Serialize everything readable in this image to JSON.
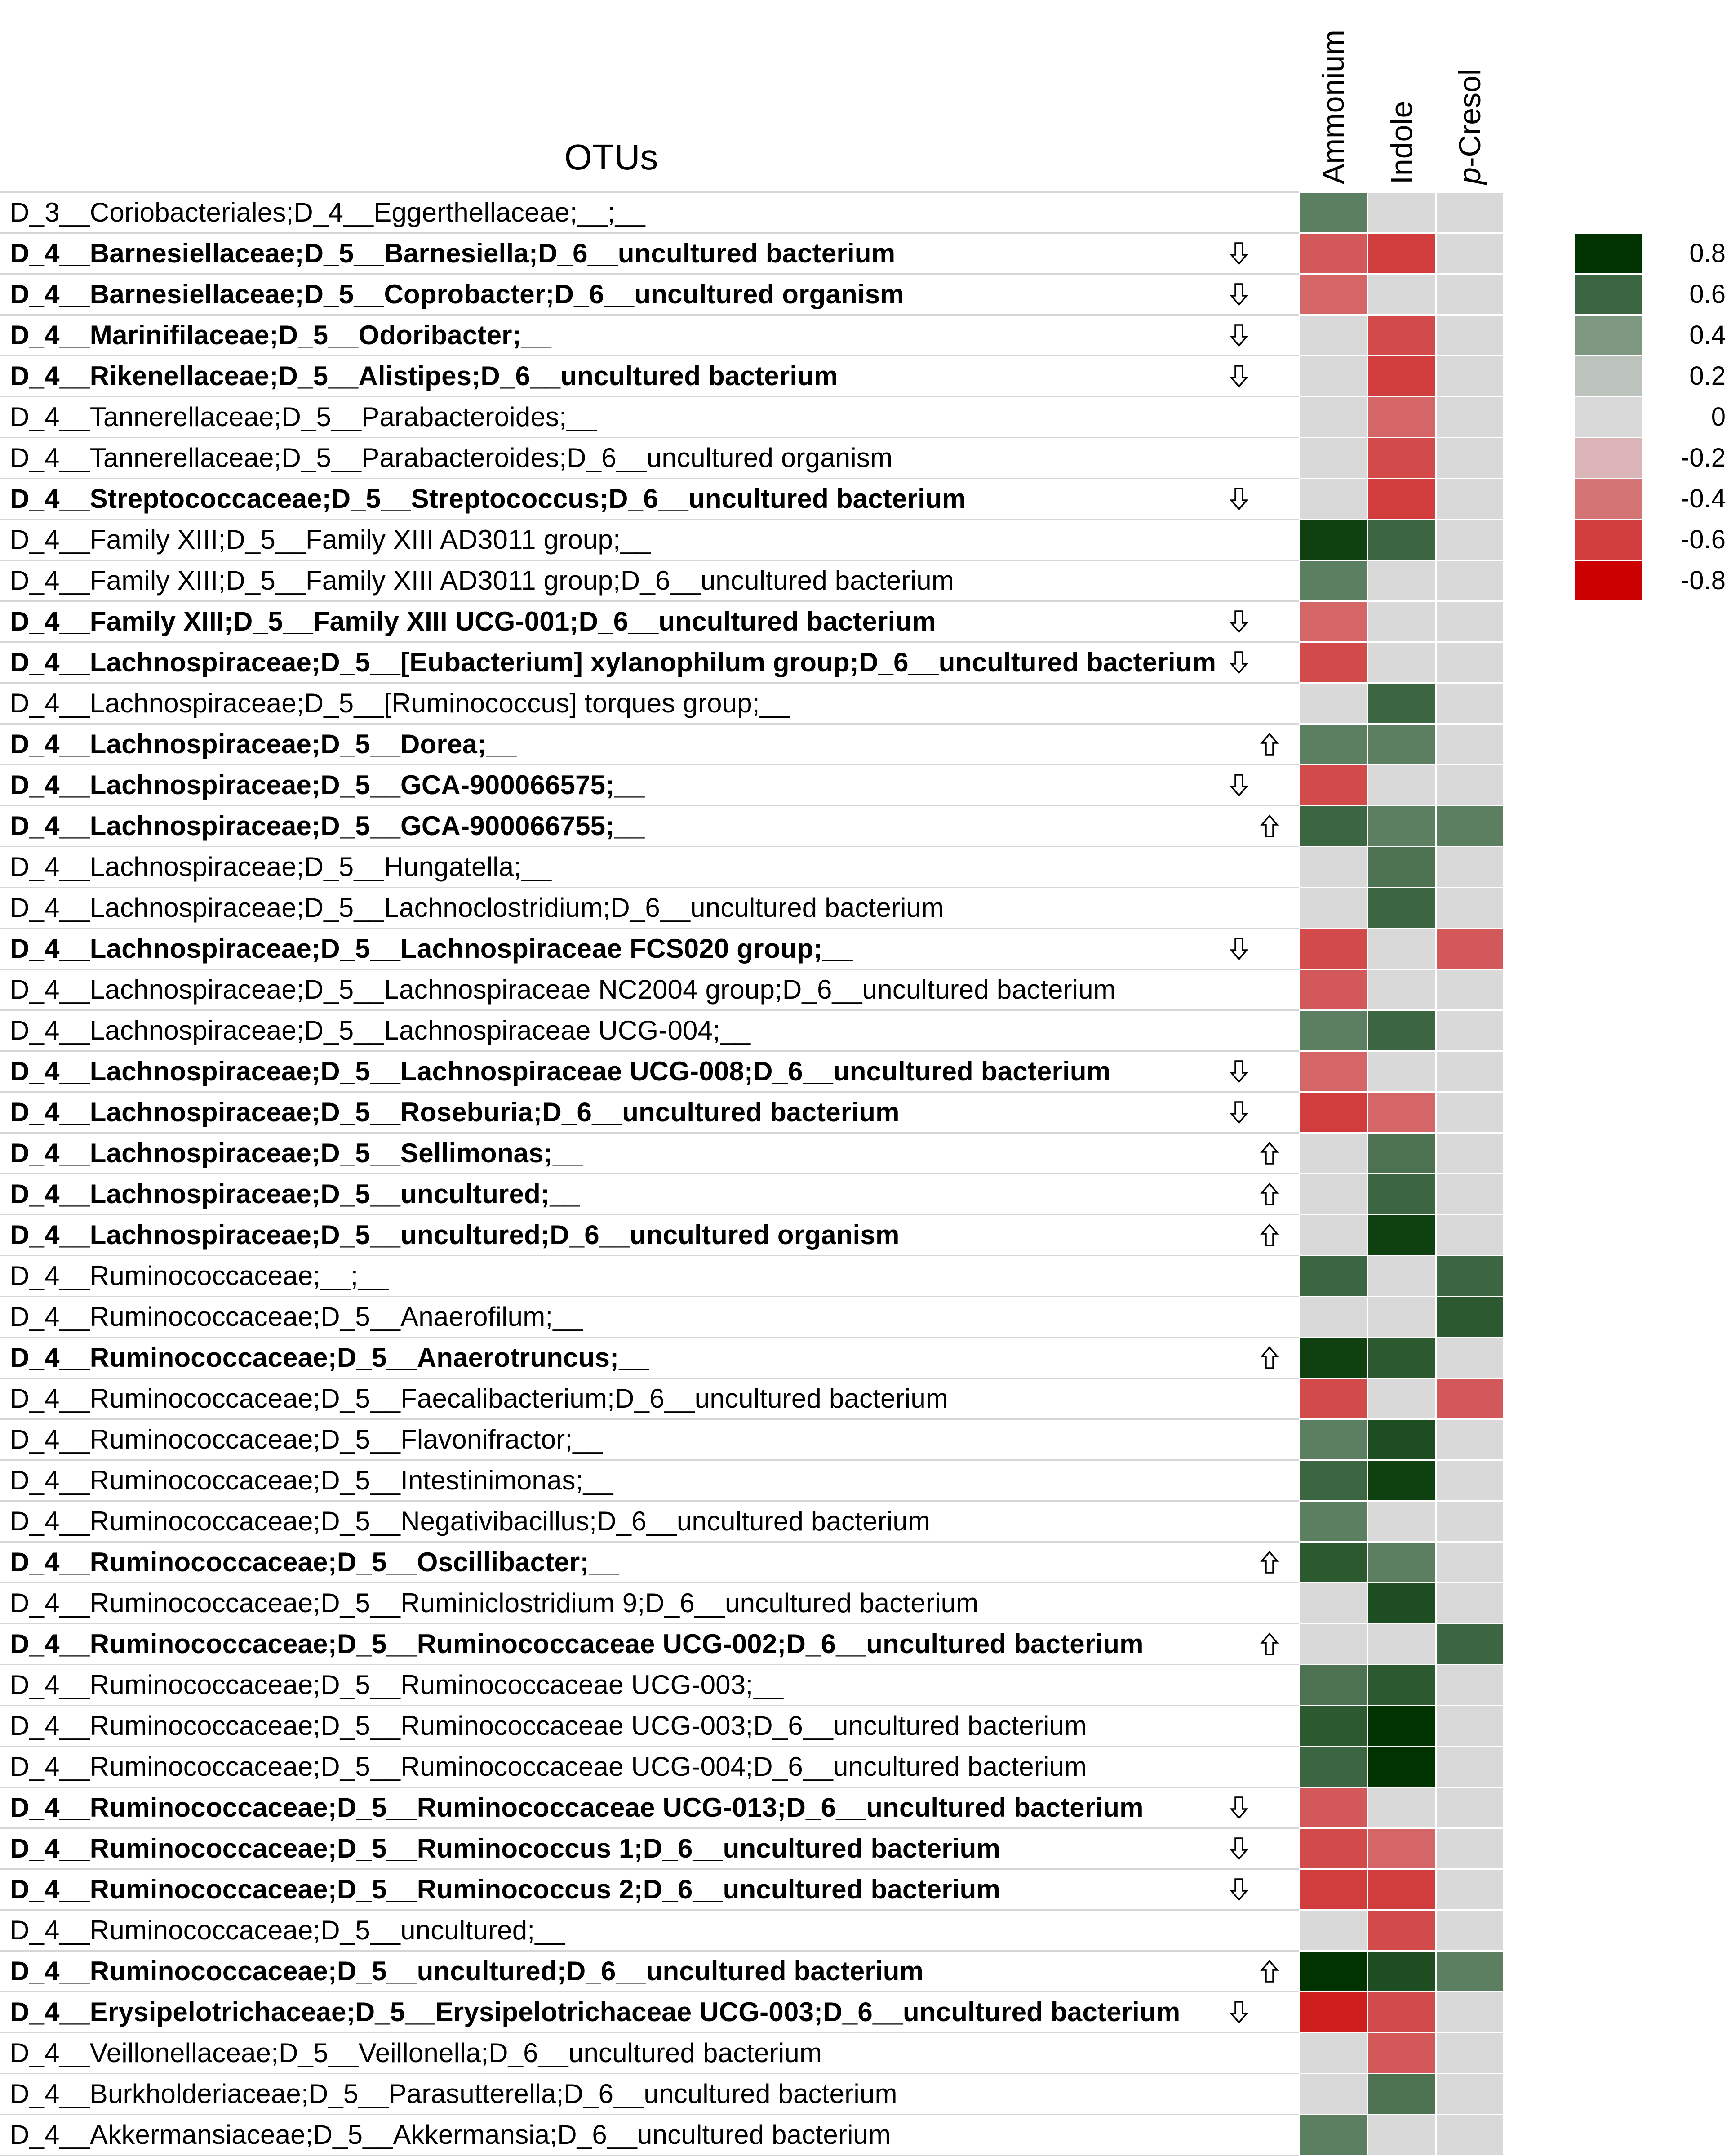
{
  "chart_data": {
    "type": "heatmap",
    "row_header": "OTUs",
    "columns": [
      {
        "prefix": "",
        "italic": "",
        "rest": "Ammonium"
      },
      {
        "prefix": "",
        "italic": "",
        "rest": "Indole"
      },
      {
        "prefix": "",
        "italic": "p",
        "rest": "-Cresol"
      }
    ],
    "legend": [
      {
        "value": 0.8,
        "label": "0.8",
        "color": "#003300"
      },
      {
        "value": 0.6,
        "label": "0.6",
        "color": "#3c6641"
      },
      {
        "value": 0.4,
        "label": "0.4",
        "color": "#7d9780"
      },
      {
        "value": 0.2,
        "label": "0.2",
        "color": "#bcc3bc"
      },
      {
        "value": 0,
        "label": "0",
        "color": "#d9d9d9"
      },
      {
        "value": -0.2,
        "label": "-0.2",
        "color": "#dbb4b7"
      },
      {
        "value": -0.4,
        "label": "-0.4",
        "color": "#d57475"
      },
      {
        "value": -0.6,
        "label": "-0.6",
        "color": "#d13c3c"
      },
      {
        "value": -0.8,
        "label": "-0.8",
        "color": "#cc0000"
      }
    ],
    "rows": [
      {
        "label": "D_3__Coriobacteriales;D_4__Eggerthellaceae;__;__",
        "bold": false,
        "arrow": "",
        "values": [
          0.5,
          0,
          0
        ]
      },
      {
        "label": "D_4__Barnesiellaceae;D_5__Barnesiella;D_6__uncultured bacterium",
        "bold": true,
        "arrow": "down",
        "values": [
          -0.5,
          -0.6,
          0
        ]
      },
      {
        "label": "D_4__Barnesiellaceae;D_5__Coprobacter;D_6__uncultured organism",
        "bold": true,
        "arrow": "down",
        "values": [
          -0.45,
          0,
          0
        ]
      },
      {
        "label": "D_4__Marinifilaceae;D_5__Odoribacter;__",
        "bold": true,
        "arrow": "down",
        "values": [
          0,
          -0.55,
          0
        ]
      },
      {
        "label": "D_4__Rikenellaceae;D_5__Alistipes;D_6__uncultured bacterium",
        "bold": true,
        "arrow": "down",
        "values": [
          0,
          -0.6,
          0
        ]
      },
      {
        "label": "D_4__Tannerellaceae;D_5__Parabacteroides;__",
        "bold": false,
        "arrow": "",
        "values": [
          0,
          -0.45,
          0
        ]
      },
      {
        "label": "D_4__Tannerellaceae;D_5__Parabacteroides;D_6__uncultured organism",
        "bold": false,
        "arrow": "",
        "values": [
          0,
          -0.55,
          0
        ]
      },
      {
        "label": "D_4__Streptococcaceae;D_5__Streptococcus;D_6__uncultured bacterium",
        "bold": true,
        "arrow": "down",
        "values": [
          0,
          -0.6,
          0
        ]
      },
      {
        "label": "D_4__Family XIII;D_5__Family XIII AD3011 group;__",
        "bold": false,
        "arrow": "",
        "values": [
          0.75,
          0.6,
          0
        ]
      },
      {
        "label": "D_4__Family XIII;D_5__Family XIII AD3011 group;D_6__uncultured bacterium",
        "bold": false,
        "arrow": "",
        "values": [
          0.5,
          0,
          0
        ]
      },
      {
        "label": "D_4__Family XIII;D_5__Family XIII UCG-001;D_6__uncultured bacterium",
        "bold": true,
        "arrow": "down",
        "values": [
          -0.45,
          0,
          0
        ]
      },
      {
        "label": "D_4__Lachnospiraceae;D_5__[Eubacterium] xylanophilum group;D_6__uncultured bacterium",
        "bold": true,
        "arrow": "down",
        "values": [
          -0.55,
          0,
          0
        ]
      },
      {
        "label": "D_4__Lachnospiraceae;D_5__[Ruminococcus] torques group;__",
        "bold": false,
        "arrow": "",
        "values": [
          0,
          0.6,
          0
        ]
      },
      {
        "label": "D_4__Lachnospiraceae;D_5__Dorea;__",
        "bold": true,
        "arrow": "up",
        "values": [
          0.5,
          0.5,
          0
        ]
      },
      {
        "label": "D_4__Lachnospiraceae;D_5__GCA-900066575;__",
        "bold": true,
        "arrow": "down",
        "values": [
          -0.55,
          0,
          0
        ]
      },
      {
        "label": "D_4__Lachnospiraceae;D_5__GCA-900066755;__",
        "bold": true,
        "arrow": "up",
        "values": [
          0.6,
          0.5,
          0.5
        ]
      },
      {
        "label": "D_4__Lachnospiraceae;D_5__Hungatella;__",
        "bold": false,
        "arrow": "",
        "values": [
          0,
          0.55,
          0
        ]
      },
      {
        "label": "D_4__Lachnospiraceae;D_5__Lachnoclostridium;D_6__uncultured bacterium",
        "bold": false,
        "arrow": "",
        "values": [
          0,
          0.6,
          0
        ]
      },
      {
        "label": "D_4__Lachnospiraceae;D_5__Lachnospiraceae FCS020 group;__",
        "bold": true,
        "arrow": "down",
        "values": [
          -0.55,
          0,
          -0.5
        ]
      },
      {
        "label": "D_4__Lachnospiraceae;D_5__Lachnospiraceae NC2004 group;D_6__uncultured bacterium",
        "bold": false,
        "arrow": "",
        "values": [
          -0.5,
          0,
          0
        ]
      },
      {
        "label": "D_4__Lachnospiraceae;D_5__Lachnospiraceae UCG-004;__",
        "bold": false,
        "arrow": "",
        "values": [
          0.5,
          0.6,
          0
        ]
      },
      {
        "label": "D_4__Lachnospiraceae;D_5__Lachnospiraceae UCG-008;D_6__uncultured bacterium",
        "bold": true,
        "arrow": "down",
        "values": [
          -0.45,
          0,
          0
        ]
      },
      {
        "label": "D_4__Lachnospiraceae;D_5__Roseburia;D_6__uncultured bacterium",
        "bold": true,
        "arrow": "down",
        "values": [
          -0.6,
          -0.45,
          0
        ]
      },
      {
        "label": "D_4__Lachnospiraceae;D_5__Sellimonas;__",
        "bold": true,
        "arrow": "up",
        "values": [
          0,
          0.55,
          0
        ]
      },
      {
        "label": "D_4__Lachnospiraceae;D_5__uncultured;__",
        "bold": true,
        "arrow": "up",
        "values": [
          0,
          0.6,
          0
        ]
      },
      {
        "label": "D_4__Lachnospiraceae;D_5__uncultured;D_6__uncultured organism",
        "bold": true,
        "arrow": "up",
        "values": [
          0,
          0.75,
          0
        ]
      },
      {
        "label": "D_4__Ruminococcaceae;__;__",
        "bold": false,
        "arrow": "",
        "values": [
          0.6,
          0,
          0.6
        ]
      },
      {
        "label": "D_4__Ruminococcaceae;D_5__Anaerofilum;__",
        "bold": false,
        "arrow": "",
        "values": [
          0,
          0,
          0.65
        ]
      },
      {
        "label": "D_4__Ruminococcaceae;D_5__Anaerotruncus;__",
        "bold": true,
        "arrow": "up",
        "values": [
          0.75,
          0.65,
          0
        ]
      },
      {
        "label": "D_4__Ruminococcaceae;D_5__Faecalibacterium;D_6__uncultured bacterium",
        "bold": false,
        "arrow": "",
        "values": [
          -0.55,
          0,
          -0.5
        ]
      },
      {
        "label": "D_4__Ruminococcaceae;D_5__Flavonifractor;__",
        "bold": false,
        "arrow": "",
        "values": [
          0.5,
          0.7,
          0
        ]
      },
      {
        "label": "D_4__Ruminococcaceae;D_5__Intestinimonas;__",
        "bold": false,
        "arrow": "",
        "values": [
          0.6,
          0.75,
          0
        ]
      },
      {
        "label": "D_4__Ruminococcaceae;D_5__Negativibacillus;D_6__uncultured bacterium",
        "bold": false,
        "arrow": "",
        "values": [
          0.5,
          0,
          0
        ]
      },
      {
        "label": "D_4__Ruminococcaceae;D_5__Oscillibacter;__",
        "bold": true,
        "arrow": "up",
        "values": [
          0.65,
          0.5,
          0
        ]
      },
      {
        "label": "D_4__Ruminococcaceae;D_5__Ruminiclostridium 9;D_6__uncultured bacterium",
        "bold": false,
        "arrow": "",
        "values": [
          0,
          0.7,
          0
        ]
      },
      {
        "label": "D_4__Ruminococcaceae;D_5__Ruminococcaceae UCG-002;D_6__uncultured bacterium",
        "bold": true,
        "arrow": "up",
        "values": [
          0,
          0,
          0.6
        ]
      },
      {
        "label": "D_4__Ruminococcaceae;D_5__Ruminococcaceae UCG-003;__",
        "bold": false,
        "arrow": "",
        "values": [
          0.55,
          0.65,
          0
        ]
      },
      {
        "label": "D_4__Ruminococcaceae;D_5__Ruminococcaceae UCG-003;D_6__uncultured bacterium",
        "bold": false,
        "arrow": "",
        "values": [
          0.65,
          0.8,
          0
        ]
      },
      {
        "label": "D_4__Ruminococcaceae;D_5__Ruminococcaceae UCG-004;D_6__uncultured bacterium",
        "bold": false,
        "arrow": "",
        "values": [
          0.6,
          0.8,
          0
        ]
      },
      {
        "label": "D_4__Ruminococcaceae;D_5__Ruminococcaceae UCG-013;D_6__uncultured bacterium",
        "bold": true,
        "arrow": "down",
        "values": [
          -0.5,
          0,
          0
        ]
      },
      {
        "label": "D_4__Ruminococcaceae;D_5__Ruminococcus 1;D_6__uncultured bacterium",
        "bold": true,
        "arrow": "down",
        "values": [
          -0.55,
          -0.45,
          0
        ]
      },
      {
        "label": "D_4__Ruminococcaceae;D_5__Ruminococcus 2;D_6__uncultured bacterium",
        "bold": true,
        "arrow": "down",
        "values": [
          -0.6,
          -0.6,
          0
        ]
      },
      {
        "label": "D_4__Ruminococcaceae;D_5__uncultured;__",
        "bold": false,
        "arrow": "",
        "values": [
          0,
          -0.55,
          0
        ]
      },
      {
        "label": "D_4__Ruminococcaceae;D_5__uncultured;D_6__uncultured bacterium",
        "bold": true,
        "arrow": "up",
        "values": [
          0.8,
          0.7,
          0.5
        ]
      },
      {
        "label": "D_4__Erysipelotrichaceae;D_5__Erysipelotrichaceae UCG-003;D_6__uncultured bacterium",
        "bold": true,
        "arrow": "down",
        "values": [
          -0.7,
          -0.55,
          0
        ]
      },
      {
        "label": "D_4__Veillonellaceae;D_5__Veillonella;D_6__uncultured bacterium",
        "bold": false,
        "arrow": "",
        "values": [
          0,
          -0.5,
          0
        ]
      },
      {
        "label": "D_4__Burkholderiaceae;D_5__Parasutterella;D_6__uncultured bacterium",
        "bold": false,
        "arrow": "",
        "values": [
          0,
          0.55,
          0
        ]
      },
      {
        "label": "D_4__Akkermansiaceae;D_5__Akkermansia;D_6__uncultured bacterium",
        "bold": false,
        "arrow": "",
        "values": [
          0.5,
          0,
          0
        ]
      }
    ]
  }
}
